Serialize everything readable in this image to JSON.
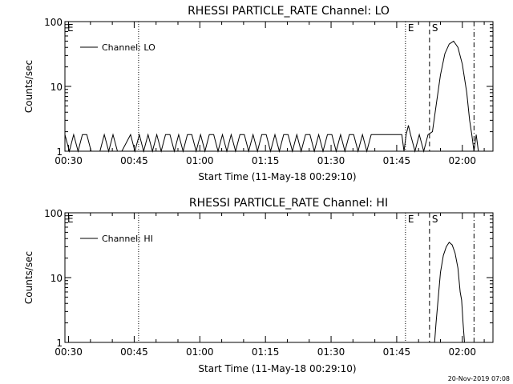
{
  "footer_timestamp": "20-Nov-2019 07:08",
  "chart_data": [
    {
      "type": "line",
      "title": "RHESSI PARTICLE_RATE Channel: LO",
      "xlabel": "Start Time (11-May-18 00:29:10)",
      "ylabel": "Counts/sec",
      "y_scale": "log",
      "ylim": [
        1,
        100
      ],
      "xlim": [
        "00:29:10",
        "02:07:00"
      ],
      "x_ticks": [
        "00:30",
        "00:45",
        "01:00",
        "01:15",
        "01:30",
        "01:45",
        "02:00"
      ],
      "y_ticks": [
        "1",
        "10",
        "100"
      ],
      "legend": {
        "label": "Channel: LO",
        "position": "top-left"
      },
      "markers": [
        {
          "label": "E",
          "time": "00:29:10",
          "style": "none"
        },
        {
          "label": "",
          "time": "00:46:00",
          "style": "dotted"
        },
        {
          "label": "E",
          "time": "01:47:00",
          "style": "dotted"
        },
        {
          "label": "S",
          "time": "01:52:30",
          "style": "dashed"
        },
        {
          "label": "",
          "time": "02:02:40",
          "style": "dash-dot"
        }
      ],
      "series": [
        {
          "name": "Channel: LO",
          "points": [
            [
              "00:29:10",
              1.8
            ],
            [
              "00:30:10",
              1
            ],
            [
              "00:31:10",
              1.8
            ],
            [
              "00:32:10",
              1
            ],
            [
              "00:33:10",
              1.8
            ],
            [
              "00:34:10",
              1.8
            ],
            [
              "00:35:10",
              1
            ],
            [
              "00:37:10",
              1
            ],
            [
              "00:38:10",
              1.8
            ],
            [
              "00:39:10",
              1
            ],
            [
              "00:40:10",
              1.8
            ],
            [
              "00:41:10",
              1
            ],
            [
              "00:42:10",
              1
            ],
            [
              "00:44:10",
              1.8
            ],
            [
              "00:45:10",
              1
            ],
            [
              "00:46:10",
              1.8
            ],
            [
              "00:47:10",
              1
            ],
            [
              "00:48:10",
              1.8
            ],
            [
              "00:49:10",
              1
            ],
            [
              "00:50:10",
              1.8
            ],
            [
              "00:51:10",
              1
            ],
            [
              "00:52:10",
              1.8
            ],
            [
              "00:53:10",
              1.8
            ],
            [
              "00:54:10",
              1
            ],
            [
              "00:55:10",
              1.8
            ],
            [
              "00:56:10",
              1
            ],
            [
              "00:57:10",
              1.8
            ],
            [
              "00:58:10",
              1.8
            ],
            [
              "00:59:10",
              1
            ],
            [
              "01:00:10",
              1.8
            ],
            [
              "01:01:10",
              1
            ],
            [
              "01:02:10",
              1.8
            ],
            [
              "01:03:10",
              1.8
            ],
            [
              "01:04:10",
              1
            ],
            [
              "01:05:10",
              1.8
            ],
            [
              "01:06:10",
              1
            ],
            [
              "01:07:10",
              1.8
            ],
            [
              "01:08:10",
              1
            ],
            [
              "01:09:10",
              1.8
            ],
            [
              "01:10:10",
              1.8
            ],
            [
              "01:11:10",
              1
            ],
            [
              "01:12:10",
              1.8
            ],
            [
              "01:13:10",
              1
            ],
            [
              "01:14:10",
              1.8
            ],
            [
              "01:15:10",
              1.8
            ],
            [
              "01:16:10",
              1
            ],
            [
              "01:17:10",
              1.8
            ],
            [
              "01:18:10",
              1
            ],
            [
              "01:19:10",
              1.8
            ],
            [
              "01:20:10",
              1.8
            ],
            [
              "01:21:10",
              1
            ],
            [
              "01:22:10",
              1.8
            ],
            [
              "01:23:10",
              1
            ],
            [
              "01:24:10",
              1.8
            ],
            [
              "01:25:10",
              1.8
            ],
            [
              "01:26:10",
              1
            ],
            [
              "01:27:10",
              1.8
            ],
            [
              "01:28:10",
              1
            ],
            [
              "01:29:10",
              1.8
            ],
            [
              "01:30:10",
              1.8
            ],
            [
              "01:31:10",
              1
            ],
            [
              "01:32:10",
              1.8
            ],
            [
              "01:33:10",
              1
            ],
            [
              "01:34:10",
              1.8
            ],
            [
              "01:35:10",
              1.8
            ],
            [
              "01:36:10",
              1
            ],
            [
              "01:37:10",
              1.8
            ],
            [
              "01:38:10",
              1
            ],
            [
              "01:39:10",
              1.8
            ],
            [
              "01:40:10",
              1.8
            ],
            [
              "01:41:10",
              1.8
            ],
            [
              "01:42:10",
              1.8
            ],
            [
              "01:43:10",
              1.8
            ],
            [
              "01:44:10",
              1.8
            ],
            [
              "01:45:10",
              1.8
            ],
            [
              "01:46:10",
              1.8
            ],
            [
              "01:46:40",
              1
            ],
            [
              "01:47:10",
              1.8
            ],
            [
              "01:47:40",
              2.5
            ],
            [
              "01:48:10",
              1.8
            ],
            [
              "01:49:10",
              1
            ],
            [
              "01:50:10",
              1.8
            ],
            [
              "01:51:10",
              1
            ],
            [
              "01:52:10",
              1.8
            ],
            [
              "01:53:10",
              2
            ],
            [
              "01:54:00",
              5
            ],
            [
              "01:55:00",
              15
            ],
            [
              "01:56:00",
              32
            ],
            [
              "01:57:00",
              45
            ],
            [
              "01:58:00",
              50
            ],
            [
              "01:59:00",
              40
            ],
            [
              "02:00:00",
              22
            ],
            [
              "02:01:00",
              8
            ],
            [
              "02:01:40",
              3
            ],
            [
              "02:02:10",
              1.8
            ],
            [
              "02:02:40",
              1
            ],
            [
              "02:03:10",
              1.8
            ],
            [
              "02:03:40",
              1
            ]
          ]
        }
      ]
    },
    {
      "type": "line",
      "title": "RHESSI PARTICLE_RATE Channel: HI",
      "xlabel": "Start Time (11-May-18 00:29:10)",
      "ylabel": "Counts/sec",
      "y_scale": "log",
      "ylim": [
        1,
        100
      ],
      "xlim": [
        "00:29:10",
        "02:07:00"
      ],
      "x_ticks": [
        "00:30",
        "00:45",
        "01:00",
        "01:15",
        "01:30",
        "01:45",
        "02:00"
      ],
      "y_ticks": [
        "1",
        "10",
        "100"
      ],
      "legend": {
        "label": "Channel: HI",
        "position": "top-left"
      },
      "markers": [
        {
          "label": "E",
          "time": "00:29:10",
          "style": "none"
        },
        {
          "label": "",
          "time": "00:46:00",
          "style": "dotted"
        },
        {
          "label": "E",
          "time": "01:47:00",
          "style": "dotted"
        },
        {
          "label": "S",
          "time": "01:52:30",
          "style": "dashed"
        },
        {
          "label": "",
          "time": "02:02:40",
          "style": "dash-dot"
        }
      ],
      "series": [
        {
          "name": "Channel: HI",
          "points": [
            [
              "01:53:40",
              0.9
            ],
            [
              "01:54:00",
              2
            ],
            [
              "01:54:30",
              5
            ],
            [
              "01:55:00",
              12
            ],
            [
              "01:55:40",
              22
            ],
            [
              "01:56:20",
              30
            ],
            [
              "01:57:00",
              35
            ],
            [
              "01:57:40",
              32
            ],
            [
              "01:58:20",
              24
            ],
            [
              "01:59:00",
              14
            ],
            [
              "01:59:30",
              6
            ],
            [
              "01:59:50",
              4.5
            ],
            [
              "02:00:10",
              2
            ],
            [
              "02:00:30",
              0.9
            ]
          ]
        }
      ]
    }
  ]
}
